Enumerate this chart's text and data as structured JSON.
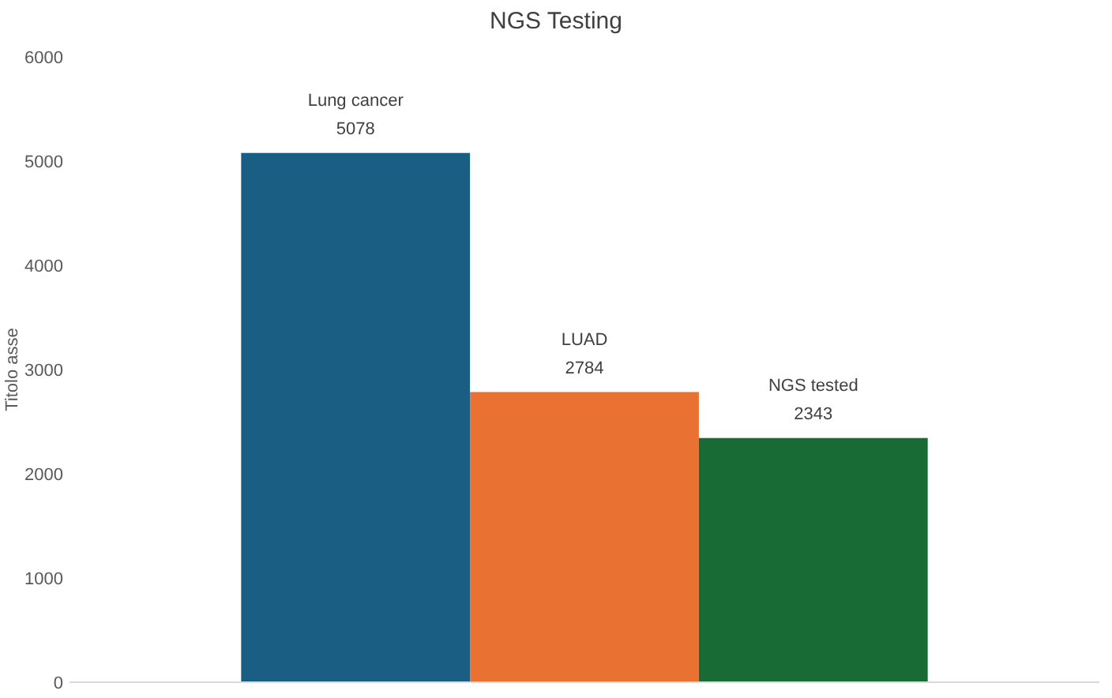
{
  "chart_data": {
    "type": "bar",
    "title": "NGS Testing",
    "ylabel": "Titolo asse",
    "categories": [
      null
    ],
    "series": [
      {
        "name": "Lung cancer",
        "color": "#1a5e83",
        "values": [
          5078
        ]
      },
      {
        "name": "LUAD",
        "color": "#e97132",
        "values": [
          2784
        ]
      },
      {
        "name": "NGS tested",
        "color": "#196b35",
        "values": [
          2343
        ]
      }
    ],
    "ylim": [
      0,
      6000
    ],
    "yticks": [
      0,
      1000,
      2000,
      3000,
      4000,
      5000,
      6000
    ],
    "grid": false,
    "data_labels": true
  }
}
